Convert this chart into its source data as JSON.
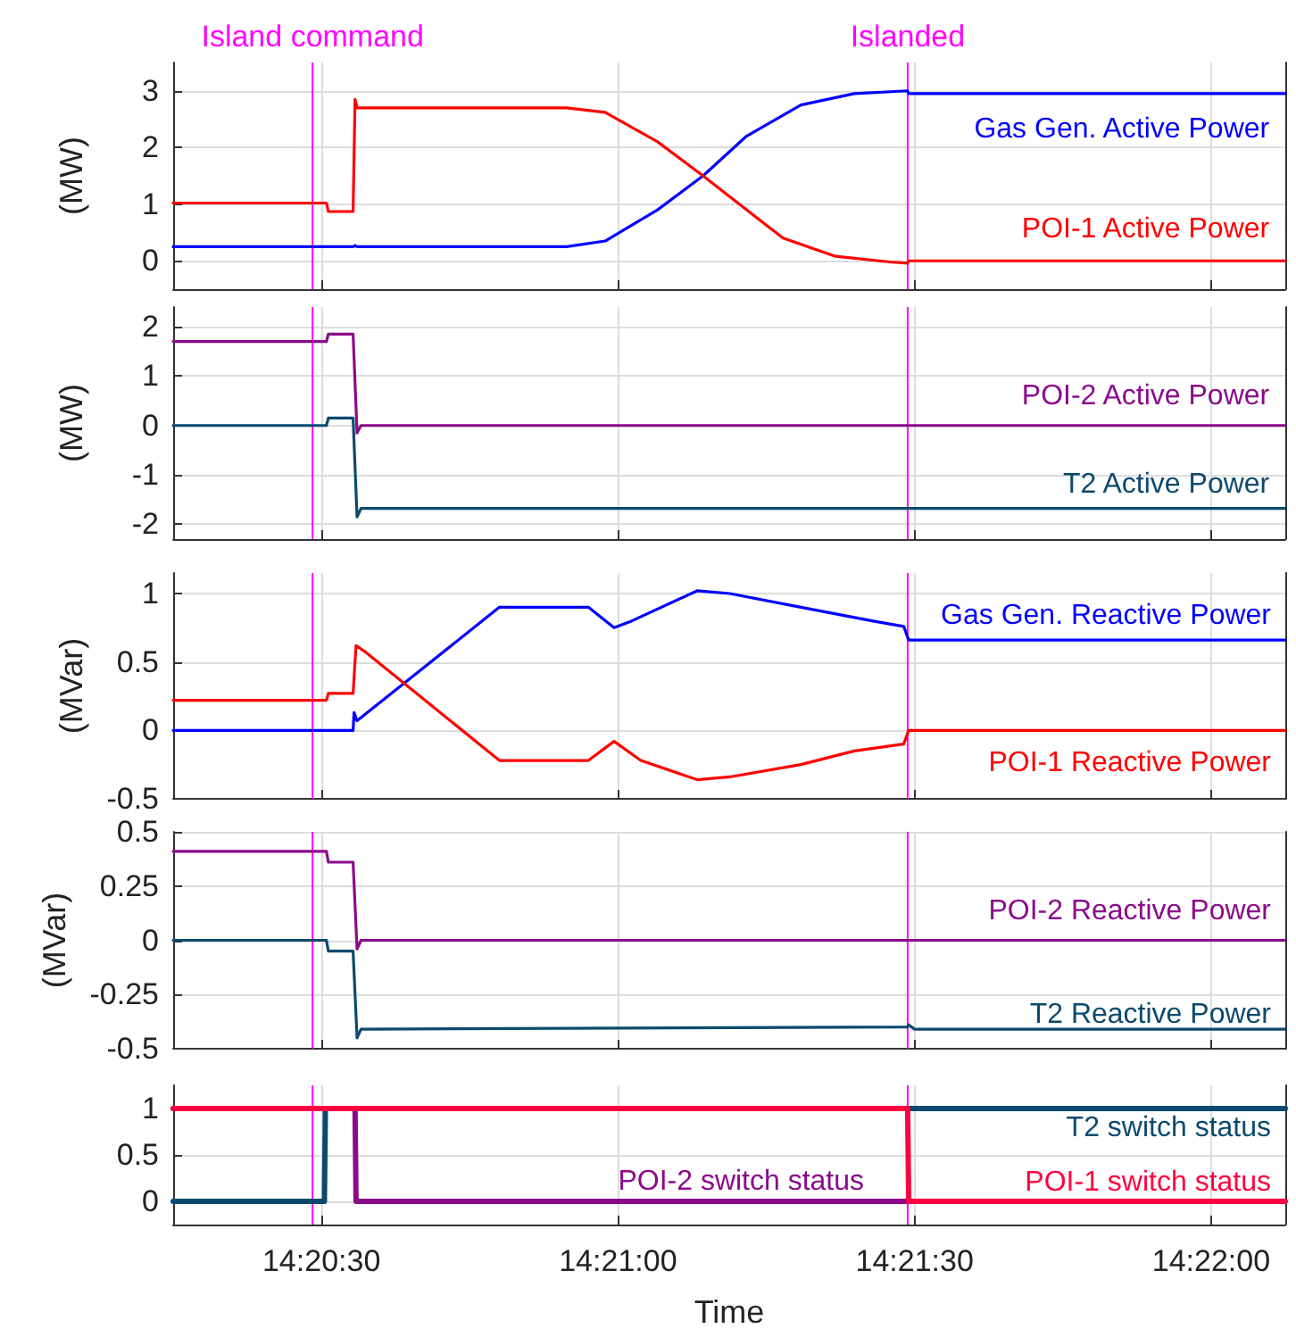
{
  "chart_data": [
    {
      "type": "line",
      "ylabel": "(MW)",
      "xlim": [
        14.3375,
        14.36875
      ],
      "ylim": [
        -0.5,
        3.5
      ],
      "yticks": [
        0,
        1,
        2,
        3
      ],
      "xticks": [
        {
          "value": 14.341667,
          "label": null
        },
        {
          "value": 14.35,
          "label": null
        },
        {
          "value": 14.358333,
          "label": null
        },
        {
          "value": 14.366667,
          "label": null
        }
      ],
      "grid": true,
      "tick_labels": "y",
      "ref_lines": [
        {
          "axis": "x",
          "value": 14.341417,
          "label": "Island command",
          "color": "#ff00ff"
        },
        {
          "axis": "x",
          "value": 14.358139,
          "label": "Islanded",
          "color": "#ff00ff"
        }
      ],
      "series": [
        {
          "name": "Gas Gen. Active Power",
          "color": "#0000ff",
          "x": [
            14.3375,
            14.342556,
            14.342611,
            14.342667,
            14.348556,
            14.349639,
            14.351111,
            14.352389,
            14.353611,
            14.355139,
            14.356639,
            14.358139,
            14.358167,
            14.36875
          ],
          "values": [
            0.25,
            0.25,
            0.27,
            0.25,
            0.25,
            0.35,
            0.9,
            1.5,
            2.2,
            2.75,
            2.95,
            3.0,
            2.95,
            2.95
          ]
        },
        {
          "name": "POI-1 Active Power",
          "color": "#ff0000",
          "x": [
            14.3375,
            14.341806,
            14.341861,
            14.342556,
            14.342611,
            14.342667,
            14.348556,
            14.349639,
            14.351111,
            14.352389,
            14.353611,
            14.354639,
            14.356111,
            14.357639,
            14.358139,
            14.358167,
            14.36875
          ],
          "values": [
            1.02,
            1.02,
            0.87,
            0.87,
            2.85,
            2.7,
            2.7,
            2.62,
            2.1,
            1.5,
            0.9,
            0.4,
            0.08,
            -0.02,
            -0.04,
            0,
            0
          ]
        }
      ]
    },
    {
      "type": "line",
      "ylabel": "(MW)",
      "xlim": [
        14.3375,
        14.36875
      ],
      "ylim": [
        -2.3,
        2.4
      ],
      "yticks": [
        -2,
        -1,
        0,
        1,
        2
      ],
      "xticks": [
        {
          "value": 14.341667,
          "label": null
        },
        {
          "value": 14.35,
          "label": null
        },
        {
          "value": 14.358333,
          "label": null
        },
        {
          "value": 14.366667,
          "label": null
        }
      ],
      "grid": true,
      "tick_labels": "y",
      "ref_lines": [
        {
          "axis": "x",
          "value": 14.341417,
          "color": "#ff00ff"
        },
        {
          "axis": "x",
          "value": 14.358139,
          "color": "#ff00ff"
        }
      ],
      "series": [
        {
          "name": "POI-2 Active Power",
          "color": "#8b0a8b",
          "x": [
            14.3375,
            14.341806,
            14.341861,
            14.342556,
            14.342667,
            14.342778,
            14.36875
          ],
          "values": [
            1.7,
            1.7,
            1.85,
            1.85,
            -0.15,
            0,
            0
          ]
        },
        {
          "name": "T2 Active Power",
          "color": "#0b4a6e",
          "x": [
            14.3375,
            14.341806,
            14.341861,
            14.342556,
            14.342667,
            14.342778,
            14.36875
          ],
          "values": [
            0,
            0,
            0.15,
            0.15,
            -1.85,
            -1.68,
            -1.68
          ]
        }
      ]
    },
    {
      "type": "line",
      "ylabel": "(MVar)",
      "xlim": [
        14.3375,
        14.36875
      ],
      "ylim": [
        -0.5,
        1.15
      ],
      "yticks": [
        -0.5,
        0,
        0.5,
        1
      ],
      "xticks": [
        {
          "value": 14.341667,
          "label": null
        },
        {
          "value": 14.35,
          "label": null
        },
        {
          "value": 14.358333,
          "label": null
        },
        {
          "value": 14.366667,
          "label": null
        }
      ],
      "grid": true,
      "tick_labels": "y",
      "ref_lines": [
        {
          "axis": "x",
          "value": 14.341417,
          "color": "#ff00ff"
        },
        {
          "axis": "x",
          "value": 14.358139,
          "color": "#ff00ff"
        }
      ],
      "series": [
        {
          "name": "Gas Gen. Reactive Power",
          "color": "#0000ff",
          "x": [
            14.3375,
            14.342556,
            14.342583,
            14.342667,
            14.346667,
            14.349167,
            14.349889,
            14.350389,
            14.352222,
            14.353139,
            14.355139,
            14.357139,
            14.358028,
            14.358167,
            14.36875
          ],
          "values": [
            0,
            0,
            0.13,
            0.07,
            0.9,
            0.9,
            0.75,
            0.8,
            1.02,
            1.0,
            0.9,
            0.8,
            0.76,
            0.66,
            0.66
          ]
        },
        {
          "name": "POI-1 Reactive Power",
          "color": "#ff0000",
          "x": [
            14.3375,
            14.341806,
            14.341861,
            14.342556,
            14.342639,
            14.342917,
            14.346667,
            14.349167,
            14.349889,
            14.350639,
            14.352222,
            14.353139,
            14.355139,
            14.356639,
            14.358028,
            14.358167,
            14.36875
          ],
          "values": [
            0.22,
            0.22,
            0.27,
            0.27,
            0.62,
            0.57,
            -0.22,
            -0.22,
            -0.08,
            -0.22,
            -0.36,
            -0.34,
            -0.25,
            -0.15,
            -0.1,
            0,
            0
          ]
        }
      ]
    },
    {
      "type": "line",
      "ylabel": "(MVar)",
      "xlim": [
        14.3375,
        14.36875
      ],
      "ylim": [
        -0.5,
        0.5
      ],
      "yticks": [
        -0.5,
        -0.25,
        0,
        0.25,
        0.5
      ],
      "xticks": [
        {
          "value": 14.341667,
          "label": null
        },
        {
          "value": 14.35,
          "label": null
        },
        {
          "value": 14.358333,
          "label": null
        },
        {
          "value": 14.366667,
          "label": null
        }
      ],
      "grid": true,
      "tick_labels": "y",
      "ref_lines": [
        {
          "axis": "x",
          "value": 14.341417,
          "color": "#ff00ff"
        },
        {
          "axis": "x",
          "value": 14.358139,
          "color": "#ff00ff"
        }
      ],
      "series": [
        {
          "name": "POI-2 Reactive Power",
          "color": "#8b0a8b",
          "x": [
            14.3375,
            14.341806,
            14.341861,
            14.342556,
            14.342667,
            14.342778,
            14.36875
          ],
          "values": [
            0.41,
            0.41,
            0.36,
            0.36,
            -0.04,
            0,
            0
          ]
        },
        {
          "name": "T2 Reactive Power",
          "color": "#0b4a6e",
          "x": [
            14.3375,
            14.341806,
            14.341861,
            14.342556,
            14.342667,
            14.342778,
            14.358139,
            14.358167,
            14.358333,
            14.36875
          ],
          "values": [
            0,
            0,
            -0.05,
            -0.05,
            -0.45,
            -0.41,
            -0.4,
            -0.39,
            -0.41,
            -0.41
          ]
        }
      ]
    },
    {
      "type": "line",
      "xlabel": "Time",
      "xlim": [
        14.3375,
        14.36875
      ],
      "ylim": [
        -0.25,
        1.25
      ],
      "yticks": [
        0,
        0.5,
        1
      ],
      "xticks": [
        {
          "value": 14.341667,
          "label": "14:20:30"
        },
        {
          "value": 14.35,
          "label": "14:21:00"
        },
        {
          "value": 14.358333,
          "label": "14:21:30"
        },
        {
          "value": 14.366667,
          "label": "14:22:00"
        }
      ],
      "grid": true,
      "ref_lines": [
        {
          "axis": "x",
          "value": 14.341417,
          "color": "#ff00ff"
        },
        {
          "axis": "x",
          "value": 14.358139,
          "color": "#ff00ff"
        }
      ],
      "series": [
        {
          "name": "T2 switch status",
          "color": "#0b4a6e",
          "x": [
            14.3375,
            14.34175,
            14.341778,
            14.36875
          ],
          "values": [
            0,
            0,
            1,
            1
          ]
        },
        {
          "name": "POI-2 switch status",
          "color": "#8b0a8b",
          "x": [
            14.3375,
            14.342611,
            14.342639,
            14.358139
          ],
          "values": [
            1,
            1,
            0,
            0
          ]
        },
        {
          "name": "POI-1 switch status",
          "color": "#ff0040",
          "x": [
            14.3375,
            14.358139,
            14.358167,
            14.36875
          ],
          "values": [
            1,
            1,
            0,
            0
          ]
        }
      ]
    }
  ]
}
